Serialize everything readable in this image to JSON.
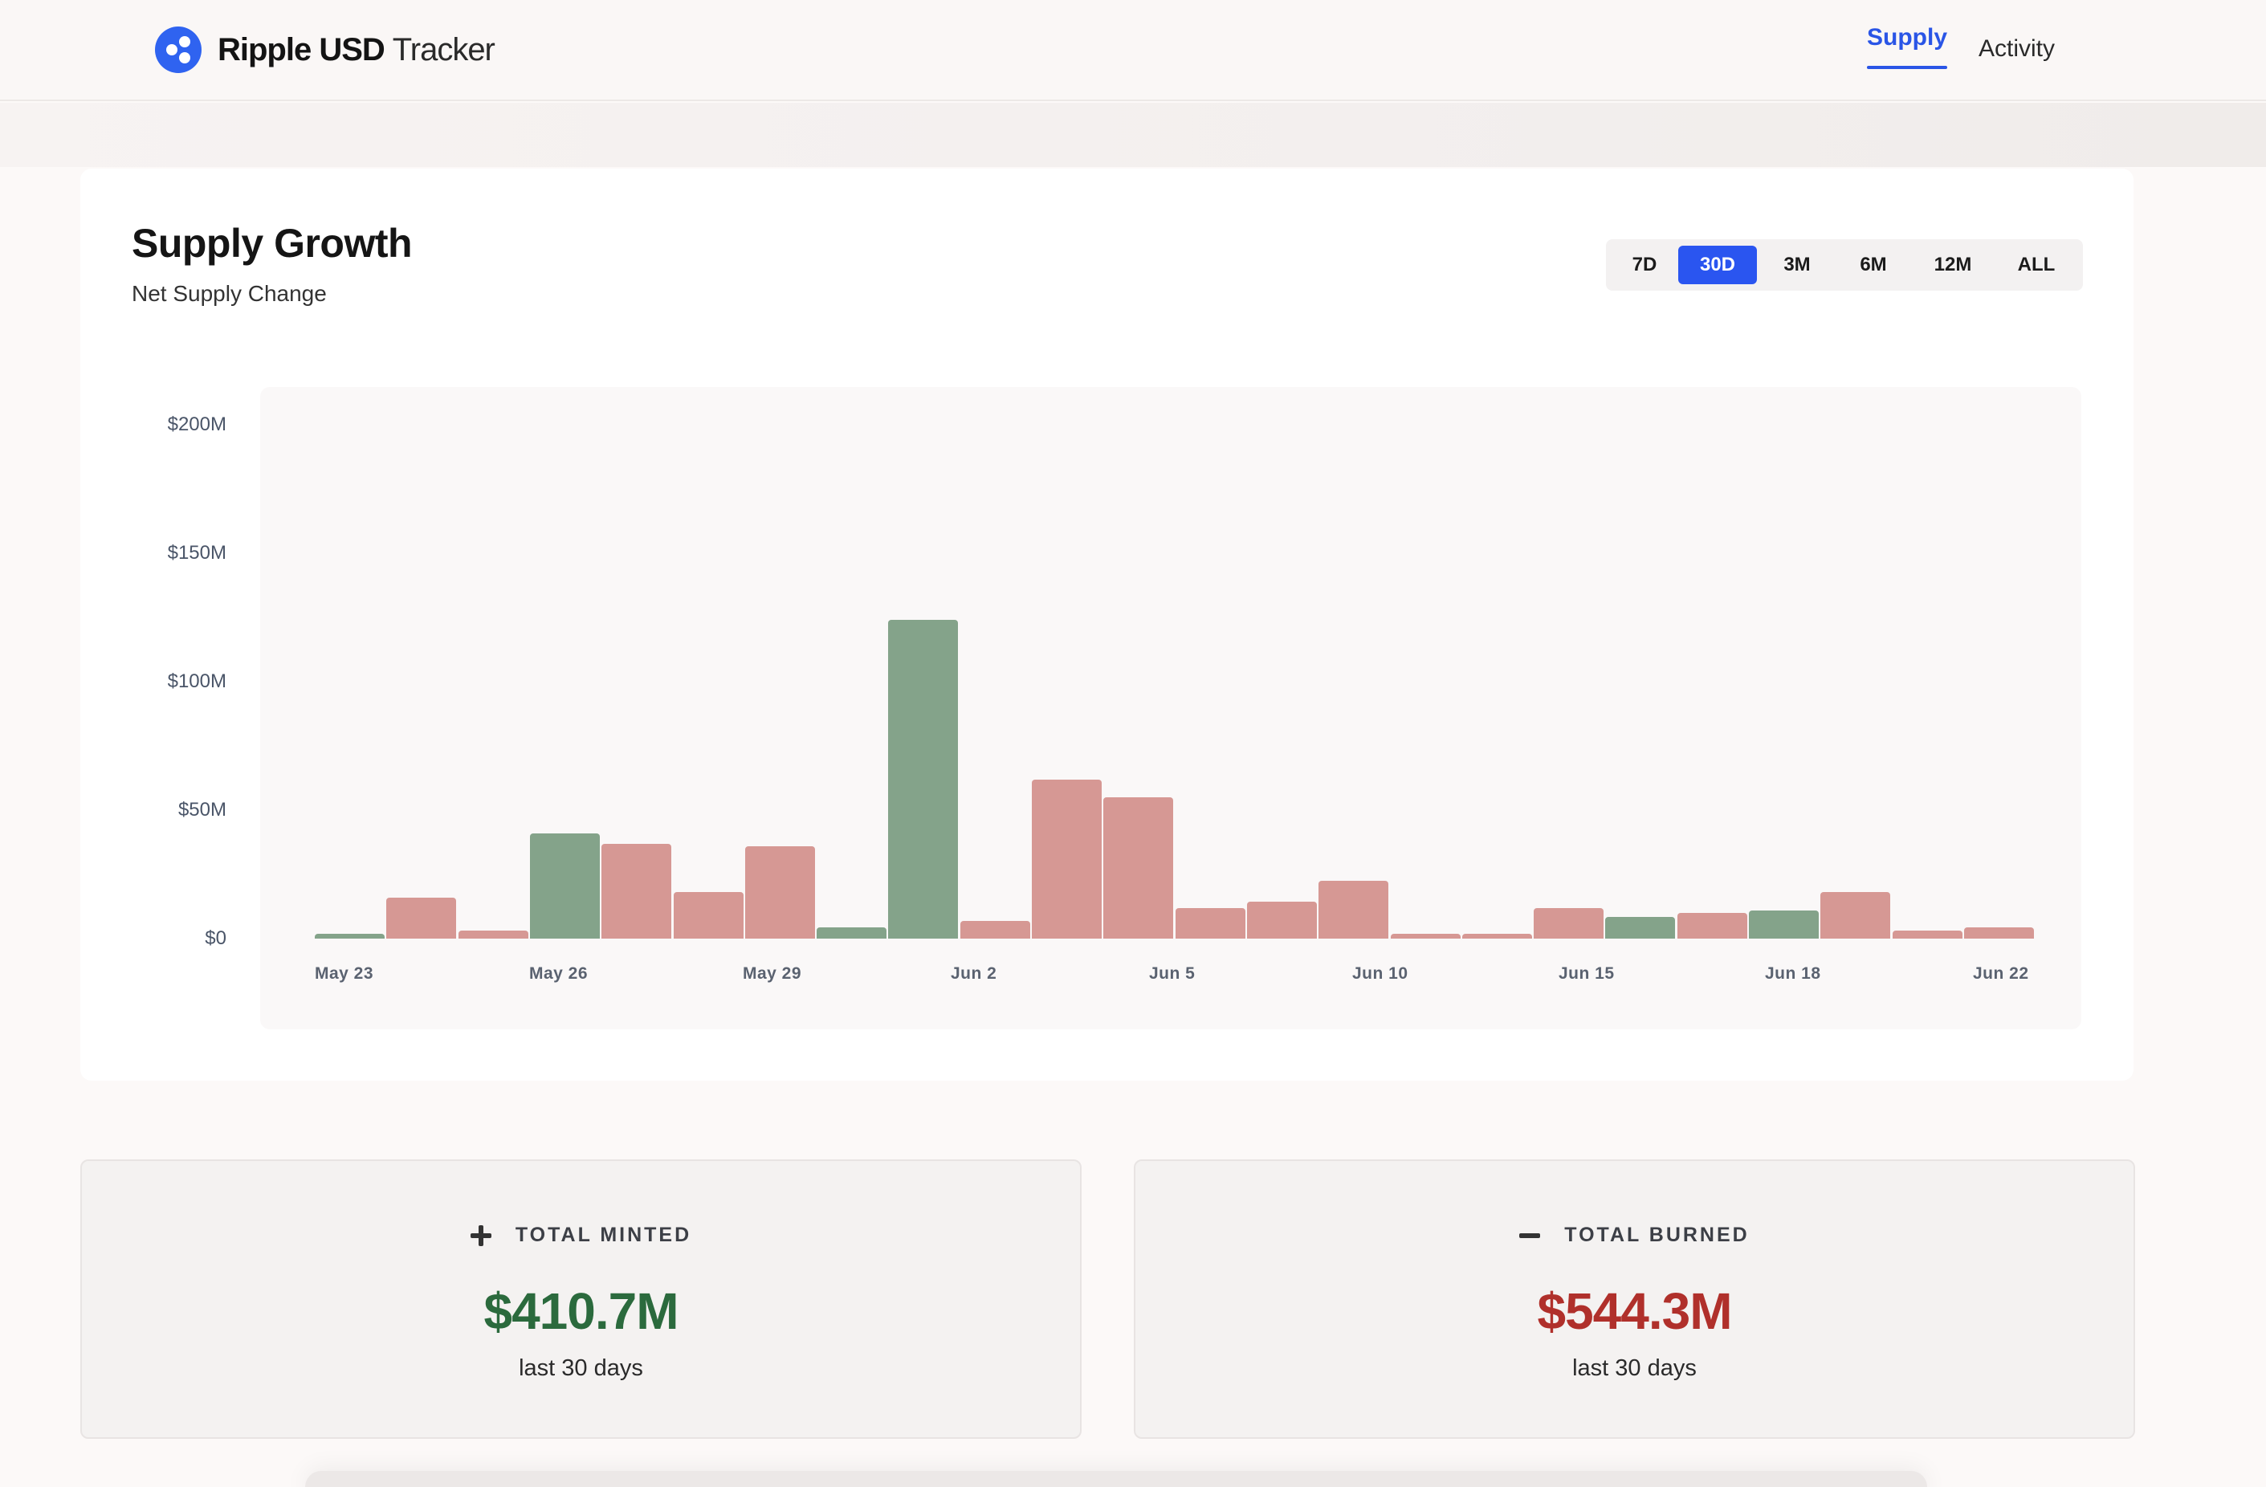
{
  "header": {
    "brand_strong": "Ripple USD",
    "brand_light": "Tracker",
    "logo_icon": "ripple-logo-icon",
    "nav": [
      {
        "label": "Supply",
        "active": true
      },
      {
        "label": "Activity",
        "active": false
      }
    ]
  },
  "chart_card": {
    "title": "Supply Growth",
    "subtitle": "Net Supply Change",
    "ranges": [
      {
        "label": "7D",
        "active": false
      },
      {
        "label": "30D",
        "active": true
      },
      {
        "label": "3M",
        "active": false
      },
      {
        "label": "6M",
        "active": false
      },
      {
        "label": "12M",
        "active": false
      },
      {
        "label": "ALL",
        "active": false
      }
    ]
  },
  "chart_data": {
    "type": "bar",
    "title": "Supply Growth",
    "subtitle": "Net Supply Change",
    "xlabel": "",
    "ylabel": "",
    "ylim": [
      0,
      200000000
    ],
    "y_ticks": [
      {
        "value": 0,
        "label": "$0"
      },
      {
        "value": 50000000,
        "label": "$50M"
      },
      {
        "value": 100000000,
        "label": "$100M"
      },
      {
        "value": 150000000,
        "label": "$150M"
      },
      {
        "value": 200000000,
        "label": "$200M"
      }
    ],
    "x_tick_labels": [
      {
        "index": 0,
        "label": "May 23"
      },
      {
        "index": 3,
        "label": "May 26"
      },
      {
        "index": 6,
        "label": "May 29"
      },
      {
        "index": 9,
        "label": "Jun 2"
      },
      {
        "index": 12,
        "label": "Jun 5"
      },
      {
        "index": 15,
        "label": "Jun 10"
      },
      {
        "index": 18,
        "label": "Jun 15"
      },
      {
        "index": 21,
        "label": "Jun 18"
      },
      {
        "index": 24,
        "label": "Jun 22"
      }
    ],
    "bars": [
      {
        "value": 2000000,
        "direction": "mint"
      },
      {
        "value": 16000000,
        "direction": "burn"
      },
      {
        "value": 3000000,
        "direction": "burn"
      },
      {
        "value": 41000000,
        "direction": "mint"
      },
      {
        "value": 37000000,
        "direction": "burn"
      },
      {
        "value": 18000000,
        "direction": "burn"
      },
      {
        "value": 36000000,
        "direction": "burn"
      },
      {
        "value": 4500000,
        "direction": "mint"
      },
      {
        "value": 124000000,
        "direction": "mint"
      },
      {
        "value": 7000000,
        "direction": "burn"
      },
      {
        "value": 62000000,
        "direction": "burn"
      },
      {
        "value": 55000000,
        "direction": "burn"
      },
      {
        "value": 12000000,
        "direction": "burn"
      },
      {
        "value": 14500000,
        "direction": "burn"
      },
      {
        "value": 22500000,
        "direction": "burn"
      },
      {
        "value": 2000000,
        "direction": "burn"
      },
      {
        "value": 2000000,
        "direction": "burn"
      },
      {
        "value": 12000000,
        "direction": "burn"
      },
      {
        "value": 8500000,
        "direction": "mint"
      },
      {
        "value": 10000000,
        "direction": "burn"
      },
      {
        "value": 11000000,
        "direction": "mint"
      },
      {
        "value": 18000000,
        "direction": "burn"
      },
      {
        "value": 3000000,
        "direction": "burn"
      },
      {
        "value": 4500000,
        "direction": "burn"
      }
    ],
    "colors": {
      "mint": "#84a38a",
      "burn": "#d69894"
    }
  },
  "stats": {
    "minted": {
      "icon": "plus-icon",
      "label": "TOTAL MINTED",
      "value": "$410.7M",
      "sub": "last 30 days",
      "color": "#2b6a3d"
    },
    "burned": {
      "icon": "minus-icon",
      "label": "TOTAL BURNED",
      "value": "$544.3M",
      "sub": "last 30 days",
      "color": "#b0302b"
    }
  }
}
